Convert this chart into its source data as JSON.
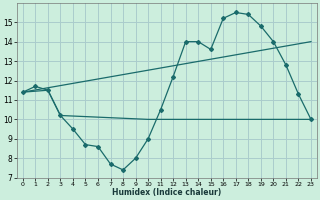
{
  "xlabel": "Humidex (Indice chaleur)",
  "bg_color": "#cceedd",
  "grid_color": "#aacccc",
  "line_color": "#1a6b6b",
  "line1_x": [
    0,
    1,
    2,
    3,
    4,
    5,
    6,
    7,
    8,
    9,
    10,
    11,
    12,
    13,
    14,
    15,
    16,
    17,
    18,
    19,
    20,
    21,
    22,
    23
  ],
  "line1_y": [
    11.4,
    11.7,
    11.5,
    10.2,
    9.5,
    8.7,
    8.6,
    7.7,
    7.4,
    8.0,
    9.0,
    10.5,
    12.2,
    14.0,
    14.0,
    13.6,
    15.2,
    15.5,
    15.4,
    14.8,
    14.0,
    12.8,
    11.3,
    10.0
  ],
  "line2_x": [
    0,
    2,
    3,
    10,
    20,
    23
  ],
  "line2_y": [
    11.4,
    11.5,
    10.2,
    10.0,
    10.0,
    10.0
  ],
  "line3_x": [
    0,
    23
  ],
  "line3_y": [
    11.4,
    14.0
  ],
  "xlim": [
    -0.5,
    23.5
  ],
  "ylim": [
    7,
    16
  ],
  "yticks": [
    7,
    8,
    9,
    10,
    11,
    12,
    13,
    14,
    15
  ],
  "xticks": [
    0,
    1,
    2,
    3,
    4,
    5,
    6,
    7,
    8,
    9,
    10,
    11,
    12,
    13,
    14,
    15,
    16,
    17,
    18,
    19,
    20,
    21,
    22,
    23
  ]
}
